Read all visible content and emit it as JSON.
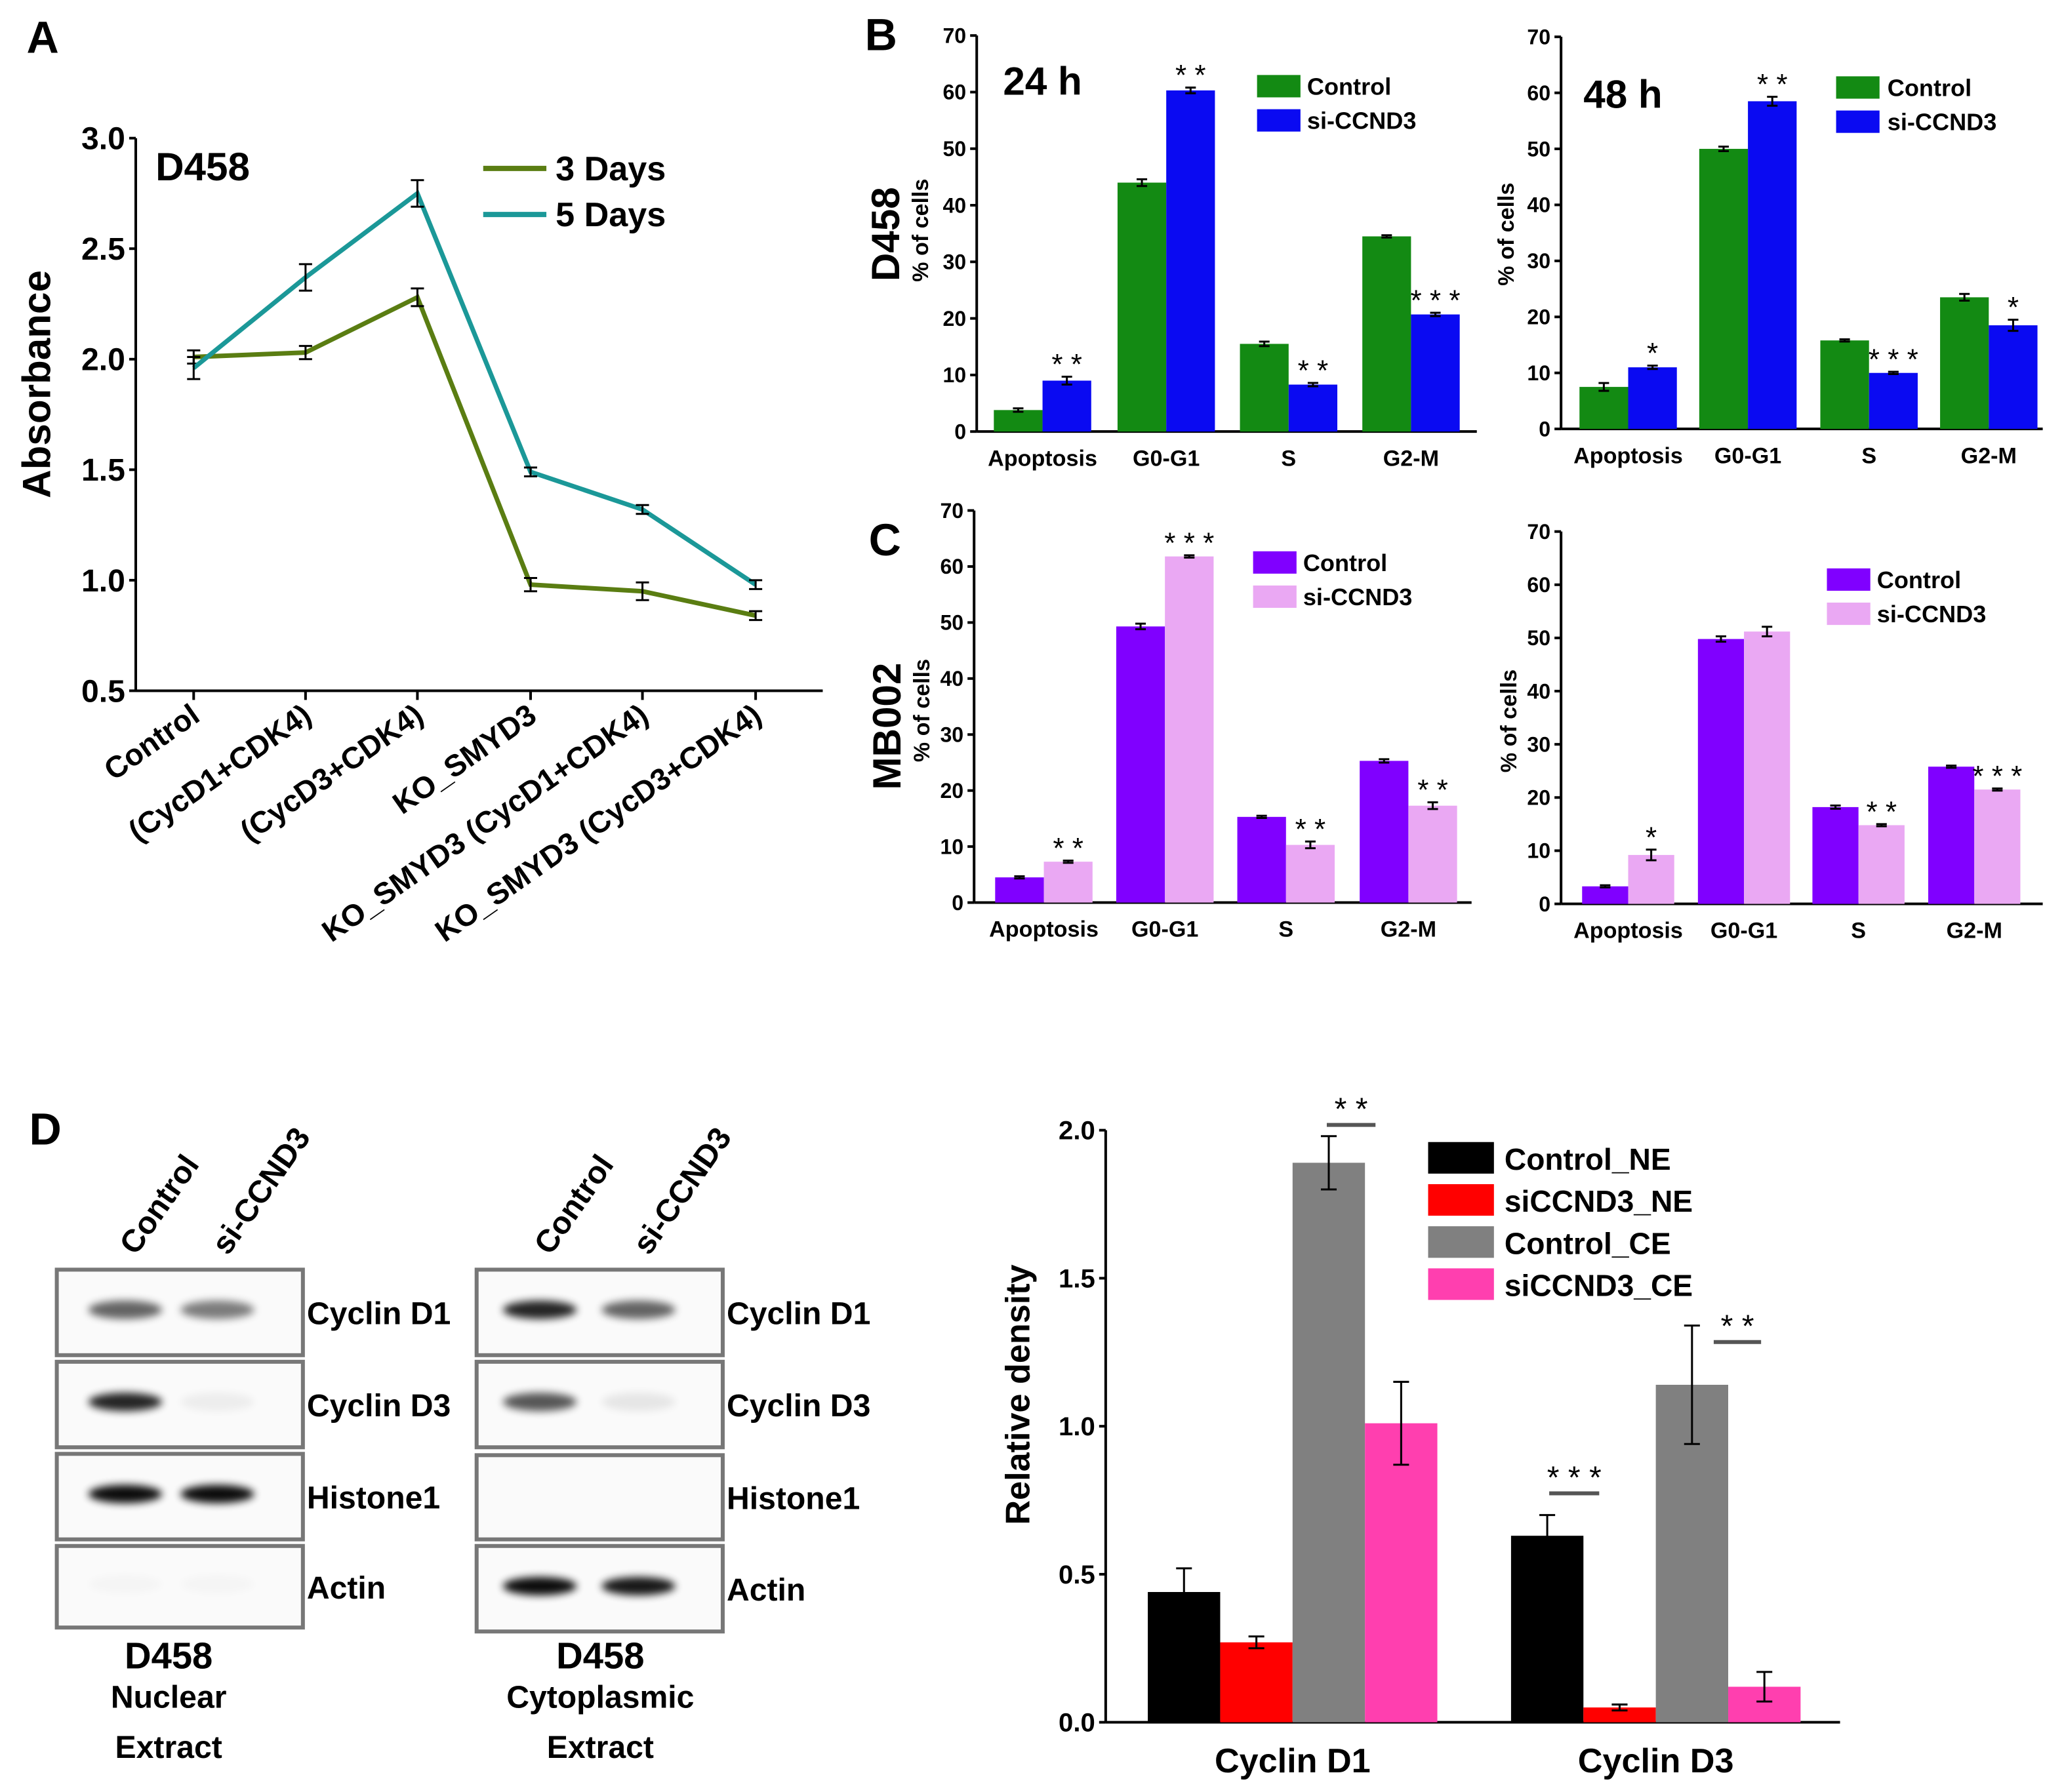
{
  "panel_labels": {
    "a": "A",
    "b": "B",
    "c": "C",
    "d": "D"
  },
  "row_labels": {
    "b": "D458",
    "c": "MB002"
  },
  "chart_data": [
    {
      "id": "A",
      "type": "line",
      "title": "D458",
      "xlabel": "",
      "ylabel": "Absorbance",
      "ylim": [
        0.5,
        3.0
      ],
      "yticks": [
        "0.5",
        "1.0",
        "1.5",
        "2.0",
        "2.5",
        "3.0"
      ],
      "categories": [
        "Control",
        "(CycD1+CDK4)",
        "(CycD3+CDK4)",
        "KO_SMYD3",
        "KO_SMYD3 (CycD1+CDK4)",
        "KO_SMYD3 (CycD3+CDK4)"
      ],
      "series": [
        {
          "name": "3 Days",
          "color": "#5a7d12",
          "values": [
            2.01,
            2.03,
            2.28,
            0.98,
            0.95,
            0.84
          ],
          "errors": [
            0.03,
            0.03,
            0.04,
            0.03,
            0.04,
            0.02
          ]
        },
        {
          "name": "5 Days",
          "color": "#1b9898",
          "values": [
            1.96,
            2.37,
            2.75,
            1.49,
            1.32,
            0.98
          ],
          "errors": [
            0.05,
            0.06,
            0.06,
            0.02,
            0.02,
            0.02
          ]
        }
      ],
      "legend": "top-right"
    },
    {
      "id": "B1",
      "type": "bar",
      "title": "24 h",
      "ylabel": "% of cells",
      "ylim": [
        0,
        70
      ],
      "yticks": [
        "0",
        "10",
        "20",
        "30",
        "40",
        "50",
        "60",
        "70"
      ],
      "categories": [
        "Apoptosis",
        "G0-G1",
        "S",
        "G2-M"
      ],
      "series": [
        {
          "name": "Control",
          "color": "#138a13",
          "values": [
            3.8,
            44.0,
            15.5,
            34.5
          ],
          "errors": [
            0.3,
            0.6,
            0.4,
            0.2
          ]
        },
        {
          "name": "si-CCND3",
          "color": "#0a0af2",
          "values": [
            9.0,
            60.3,
            8.3,
            20.7
          ],
          "errors": [
            0.7,
            0.5,
            0.3,
            0.3
          ],
          "significance": [
            "**",
            "**",
            "**",
            "***"
          ]
        }
      ],
      "legend": "top-right"
    },
    {
      "id": "B2",
      "type": "bar",
      "title": "48 h",
      "ylabel": "% of cells",
      "ylim": [
        0,
        70
      ],
      "yticks": [
        "0",
        "10",
        "20",
        "30",
        "40",
        "50",
        "60",
        "70"
      ],
      "categories": [
        "Apoptosis",
        "G0-G1",
        "S",
        "G2-M"
      ],
      "series": [
        {
          "name": "Control",
          "color": "#138a13",
          "values": [
            7.5,
            50.0,
            15.8,
            23.5
          ],
          "errors": [
            0.7,
            0.4,
            0.2,
            0.6
          ]
        },
        {
          "name": "si-CCND3",
          "color": "#0a0af2",
          "values": [
            11.0,
            58.5,
            10.0,
            18.5
          ],
          "errors": [
            0.3,
            0.8,
            0.2,
            1.0
          ],
          "significance": [
            "*",
            "**",
            "***",
            "*"
          ]
        }
      ],
      "legend": "top-right"
    },
    {
      "id": "C1",
      "type": "bar",
      "title": "",
      "ylabel": "% of cells",
      "ylim": [
        0,
        70
      ],
      "yticks": [
        "0",
        "10",
        "20",
        "30",
        "40",
        "50",
        "60",
        "70"
      ],
      "categories": [
        "Apoptosis",
        "G0-G1",
        "S",
        "G2-M"
      ],
      "series": [
        {
          "name": "Control",
          "color": "#8000ff",
          "values": [
            4.5,
            49.3,
            15.3,
            25.3
          ],
          "errors": [
            0.2,
            0.5,
            0.2,
            0.3
          ]
        },
        {
          "name": "si-CCND3",
          "color": "#eaa8f3",
          "values": [
            7.3,
            61.8,
            10.3,
            17.3
          ],
          "errors": [
            0.2,
            0.2,
            0.6,
            0.6
          ],
          "significance": [
            "**",
            "***",
            "**",
            "**"
          ]
        }
      ],
      "legend": "top-right"
    },
    {
      "id": "C2",
      "type": "bar",
      "title": "",
      "ylabel": "% of cells",
      "ylim": [
        0,
        70
      ],
      "yticks": [
        "0",
        "10",
        "20",
        "30",
        "40",
        "50",
        "60",
        "70"
      ],
      "categories": [
        "Apoptosis",
        "G0-G1",
        "S",
        "G2-M"
      ],
      "series": [
        {
          "name": "Control",
          "color": "#8000ff",
          "values": [
            3.3,
            49.8,
            18.2,
            25.8
          ],
          "errors": [
            0.2,
            0.5,
            0.3,
            0.2
          ]
        },
        {
          "name": "si-CCND3",
          "color": "#eaa8f3",
          "values": [
            9.2,
            51.2,
            14.8,
            21.5
          ],
          "errors": [
            1.0,
            0.9,
            0.2,
            0.2
          ],
          "significance": [
            "*",
            "",
            "**",
            "***"
          ]
        }
      ],
      "legend": "top-right"
    },
    {
      "id": "D",
      "type": "bar",
      "title": "",
      "ylabel": "Relative density",
      "ylim": [
        0,
        2.0
      ],
      "yticks": [
        "0.0",
        "0.5",
        "1.0",
        "1.5",
        "2.0"
      ],
      "categories": [
        "Cyclin D1",
        "Cyclin D3"
      ],
      "series": [
        {
          "name": "Control_NE",
          "color": "#000000",
          "values": [
            0.44,
            0.63
          ],
          "errors": [
            0.08,
            0.07
          ]
        },
        {
          "name": "siCCND3_NE",
          "color": "#ff0000",
          "values": [
            0.27,
            0.05
          ],
          "errors": [
            0.02,
            0.01
          ]
        },
        {
          "name": "Control_CE",
          "color": "#808080",
          "values": [
            1.89,
            1.14
          ],
          "errors": [
            0.09,
            0.2
          ]
        },
        {
          "name": "siCCND3_CE",
          "color": "#ff3faf",
          "values": [
            1.01,
            0.12
          ],
          "errors": [
            0.14,
            0.05
          ]
        }
      ],
      "significance": [
        {
          "category": "Cyclin D1",
          "between": [
            "Control_CE",
            "siCCND3_CE"
          ],
          "label": "**"
        },
        {
          "category": "Cyclin D3",
          "between": [
            "Control_NE",
            "siCCND3_NE"
          ],
          "label": "***"
        },
        {
          "category": "Cyclin D3",
          "between": [
            "Control_CE",
            "siCCND3_CE"
          ],
          "label": "**"
        }
      ],
      "legend": "top-right"
    }
  ],
  "blots": [
    {
      "lanes": [
        "Control",
        "si-CCND3"
      ],
      "rows": [
        "Cyclin D1",
        "Cyclin D3",
        "Histone1",
        "Actin"
      ],
      "band_intensity": [
        [
          0.6,
          0.5
        ],
        [
          0.85,
          0.05
        ],
        [
          0.95,
          0.95
        ],
        [
          0.02,
          0.02
        ]
      ],
      "caption": [
        "D458",
        "Nuclear",
        "Extract"
      ]
    },
    {
      "lanes": [
        "Control",
        "si-CCND3"
      ],
      "rows": [
        "Cyclin D1",
        "Cyclin D3",
        "Histone1",
        "Actin"
      ],
      "band_intensity": [
        [
          0.85,
          0.6
        ],
        [
          0.65,
          0.08
        ],
        [
          0.0,
          0.0
        ],
        [
          0.95,
          0.9
        ]
      ],
      "caption": [
        "D458",
        "Cytoplasmic",
        "Extract"
      ]
    }
  ]
}
